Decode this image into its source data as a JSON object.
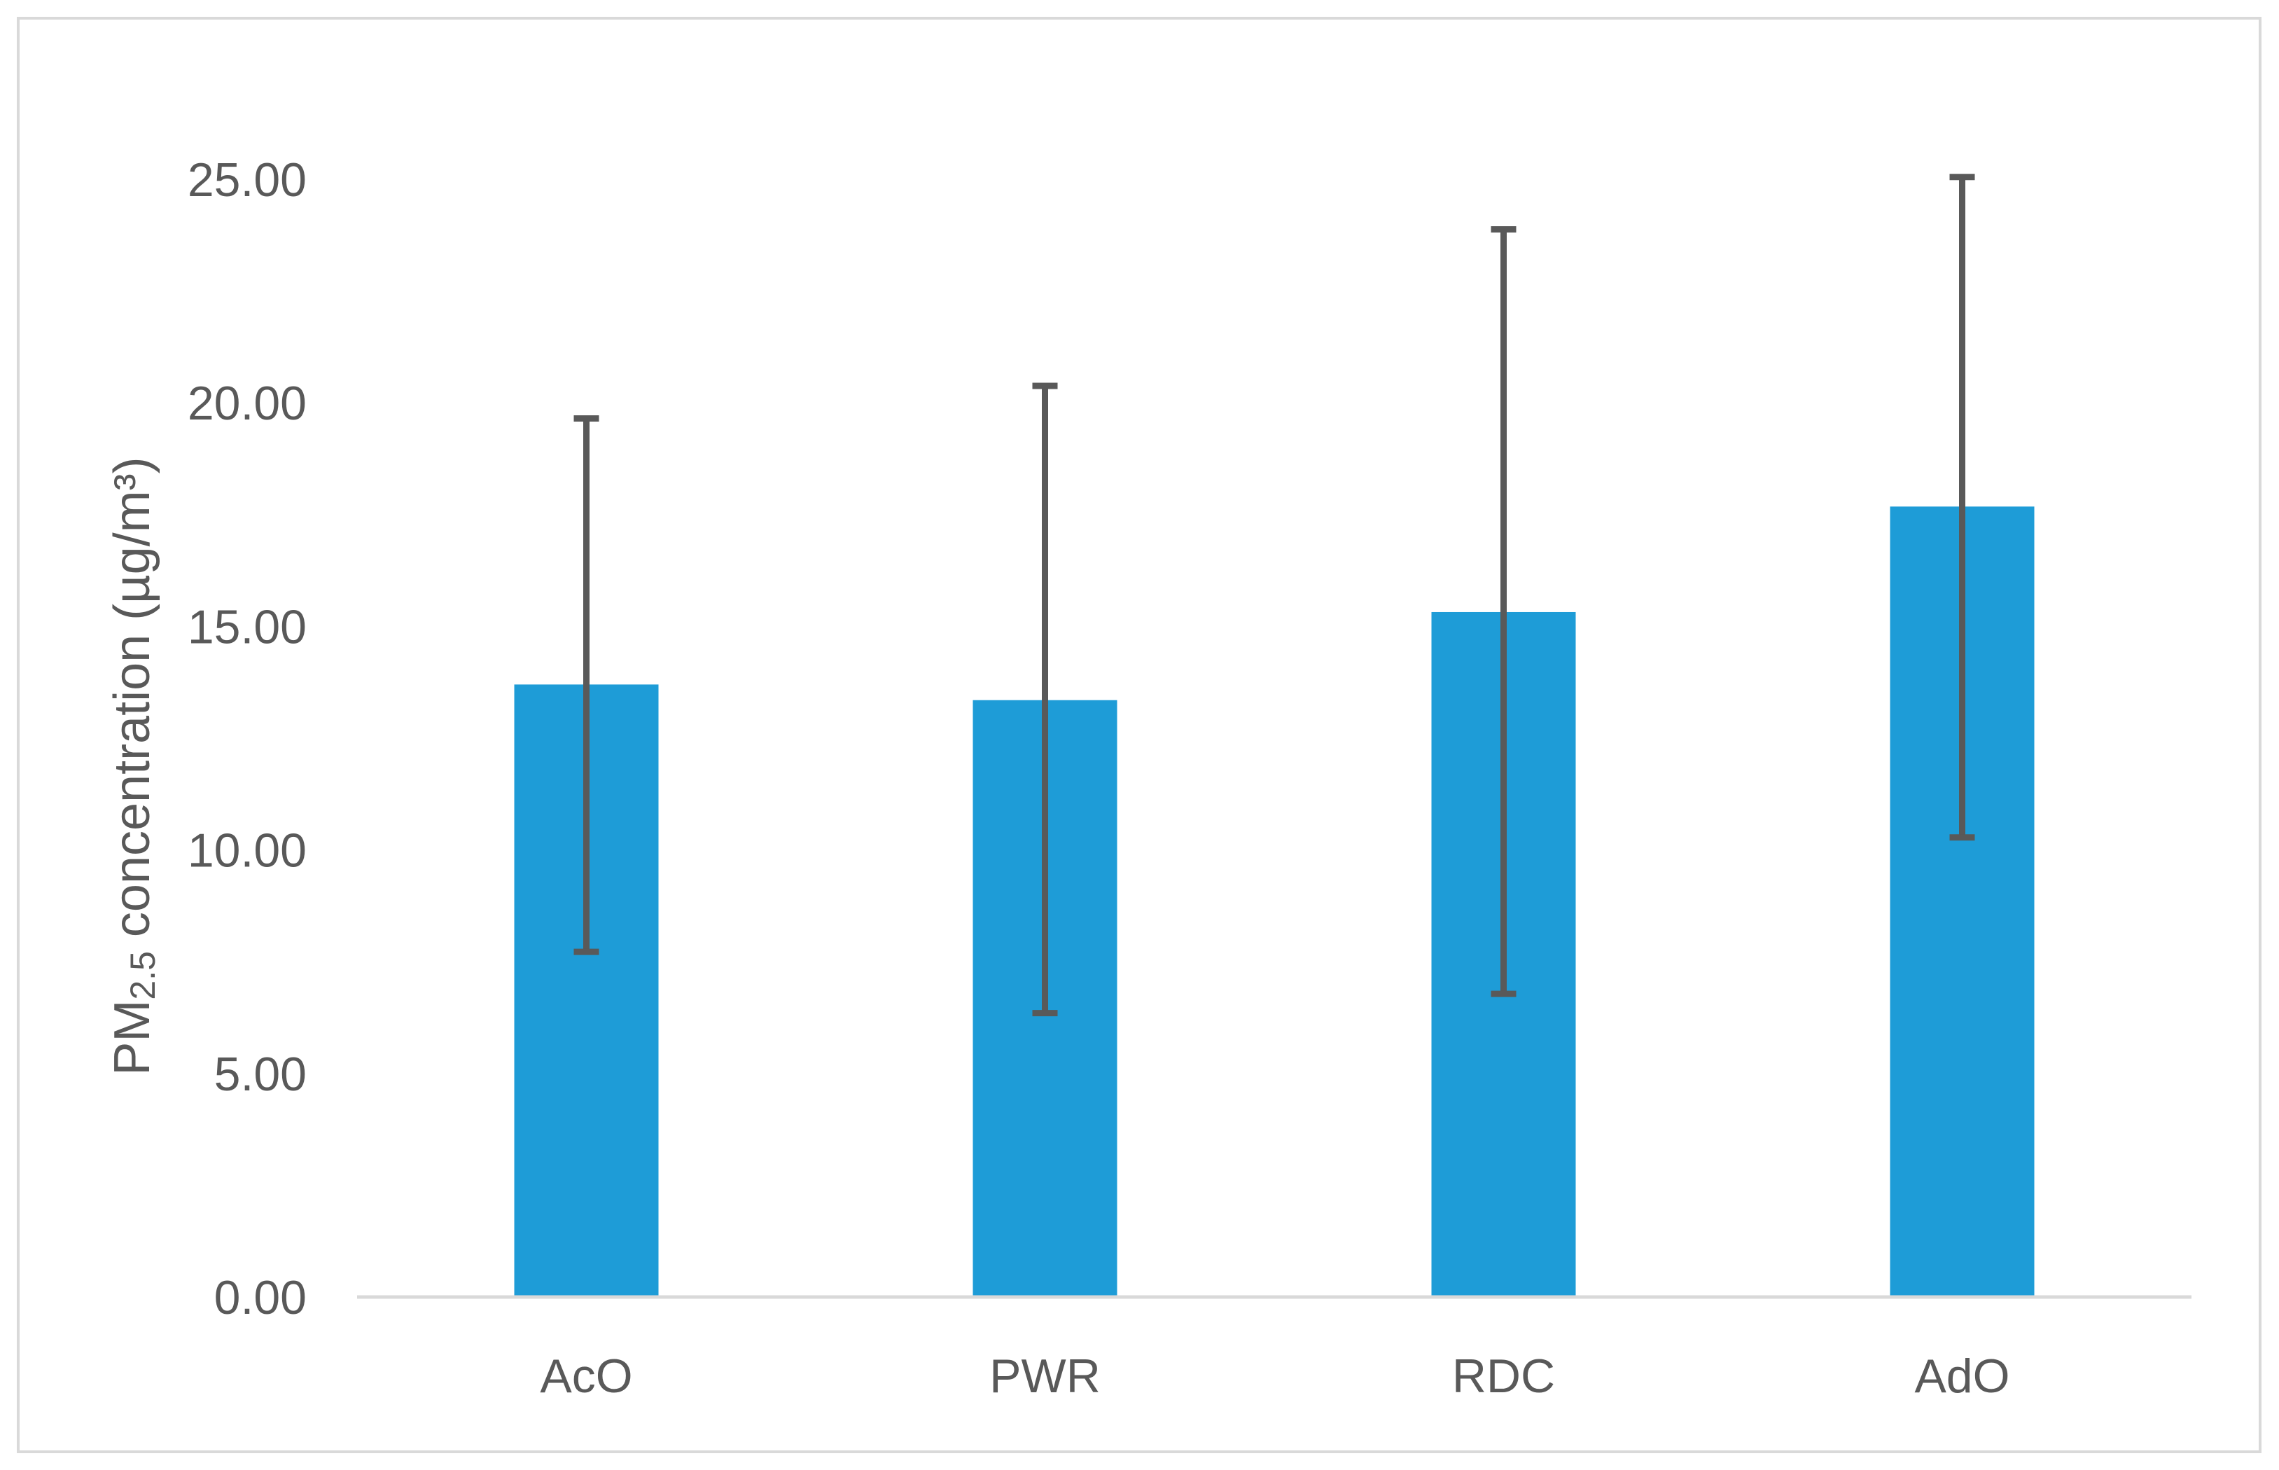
{
  "chart_data": {
    "type": "bar",
    "title": "",
    "xlabel": "",
    "ylabel": {
      "prefix": "PM",
      "subscript": "2.5",
      "suffix": " concentration (µg/m³)"
    },
    "categories": [
      "AcO",
      "PWR",
      "RDC",
      "AdO"
    ],
    "values": [
      13.7,
      13.35,
      15.32,
      17.68
    ],
    "error_low": [
      7.72,
      6.35,
      6.78,
      10.28
    ],
    "error_high": [
      19.65,
      20.38,
      23.88,
      25.05
    ],
    "ylim": [
      0,
      25
    ],
    "yticks": [
      "0.00",
      "5.00",
      "10.00",
      "15.00",
      "20.00",
      "25.00"
    ],
    "ytick_values": [
      0,
      5,
      10,
      15,
      20,
      25
    ],
    "grid": false,
    "legend": "none",
    "colors": {
      "bar": "#1e9cd7",
      "error_bar": "#595959",
      "axis": "#d9d9d9",
      "text": "#595959"
    }
  }
}
